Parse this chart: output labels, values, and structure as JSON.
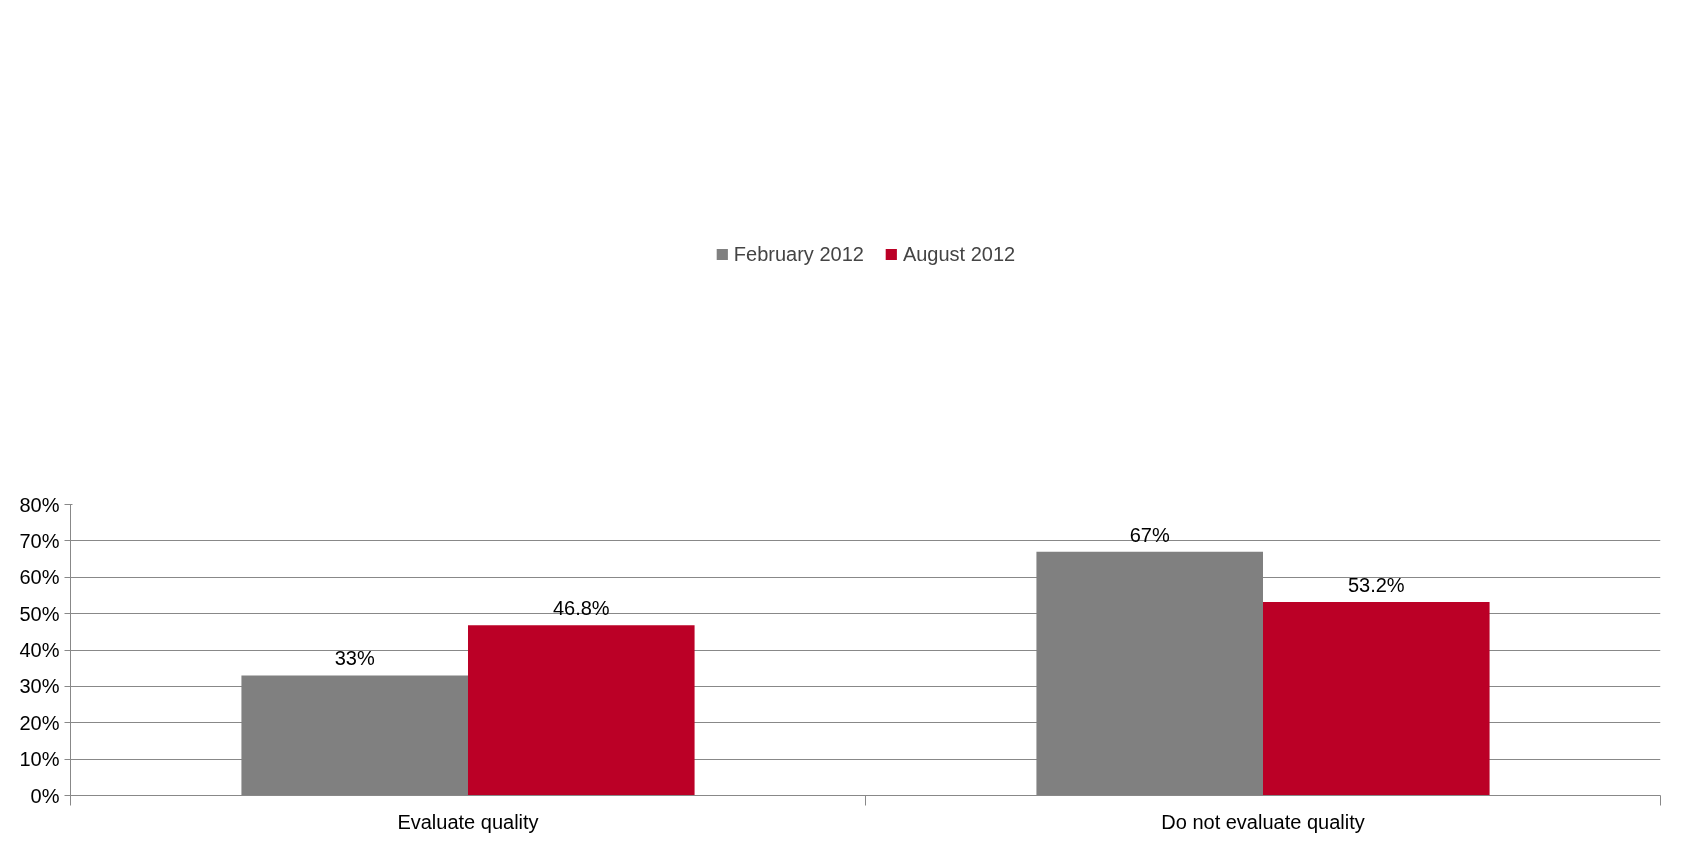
{
  "chart_data": {
    "type": "bar",
    "categories": [
      "Evaluate quality",
      "Do not evaluate quality"
    ],
    "series": [
      {
        "name": "February 2012",
        "color": "#808080",
        "values": [
          33,
          67
        ],
        "value_labels": [
          "33%",
          "67%"
        ]
      },
      {
        "name": "August 2012",
        "color": "#bb0026",
        "values": [
          46.8,
          53.2
        ],
        "value_labels": [
          "46.8%",
          "53.2%"
        ]
      }
    ],
    "ylim": [
      0,
      80
    ],
    "yticks": [
      {
        "value": 0,
        "label": "0%"
      },
      {
        "value": 10,
        "label": "10%"
      },
      {
        "value": 20,
        "label": "20%"
      },
      {
        "value": 30,
        "label": "30%"
      },
      {
        "value": 40,
        "label": "40%"
      },
      {
        "value": 50,
        "label": "50%"
      },
      {
        "value": 60,
        "label": "60%"
      },
      {
        "value": 70,
        "label": "70%"
      },
      {
        "value": 80,
        "label": "80%"
      }
    ],
    "grid": "y",
    "legend": "top"
  }
}
